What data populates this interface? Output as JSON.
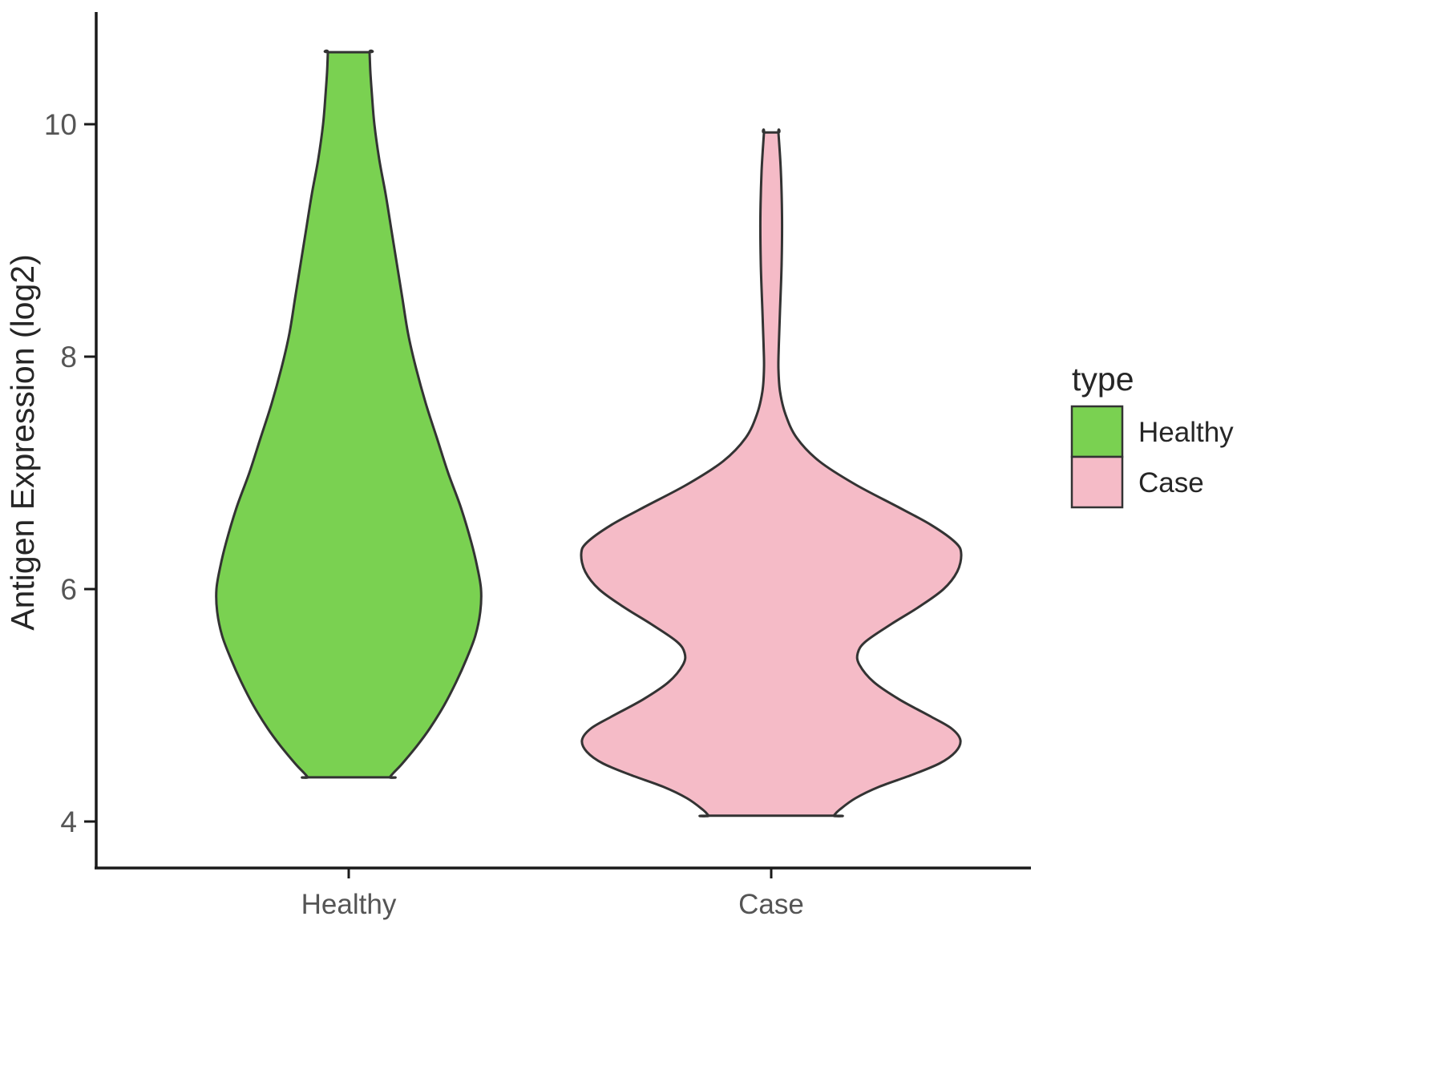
{
  "chart_data": {
    "type": "violin",
    "title": "",
    "xlabel": "",
    "ylabel": "Antigen Expression (log2)",
    "categories": [
      "Healthy",
      "Case"
    ],
    "yticks": [
      4,
      6,
      8,
      10
    ],
    "ylim": [
      3.55,
      10.95
    ],
    "grid": "off",
    "legend": {
      "title": "type",
      "position": "right",
      "entries": [
        {
          "label": "Healthy",
          "color": "#7AD151"
        },
        {
          "label": "Case",
          "color": "#F5BBC7"
        }
      ]
    },
    "colors": {
      "outline": "#333333",
      "axis": "#1a1a1a",
      "healthy_fill": "#7AD151",
      "case_fill": "#F5BBC7"
    },
    "series": [
      {
        "name": "Healthy",
        "color": "#7AD151",
        "summary": {
          "min": 4.38,
          "max": 10.62,
          "peak_density_at": 6.0
        },
        "profile": [
          [
            10.62,
            26
          ],
          [
            10.45,
            27
          ],
          [
            10.25,
            29
          ],
          [
            10.0,
            32
          ],
          [
            9.7,
            38
          ],
          [
            9.4,
            46
          ],
          [
            9.1,
            53
          ],
          [
            8.8,
            60
          ],
          [
            8.5,
            67
          ],
          [
            8.2,
            74
          ],
          [
            7.9,
            84
          ],
          [
            7.6,
            96
          ],
          [
            7.3,
            110
          ],
          [
            7.0,
            124
          ],
          [
            6.7,
            140
          ],
          [
            6.4,
            153
          ],
          [
            6.2,
            160
          ],
          [
            6.0,
            165
          ],
          [
            5.8,
            164
          ],
          [
            5.6,
            158
          ],
          [
            5.4,
            147
          ],
          [
            5.2,
            134
          ],
          [
            5.0,
            119
          ],
          [
            4.8,
            101
          ],
          [
            4.65,
            85
          ],
          [
            4.5,
            67
          ],
          [
            4.42,
            56
          ],
          [
            4.38,
            51
          ]
        ]
      },
      {
        "name": "Case",
        "color": "#F5BBC7",
        "summary": {
          "min": 4.05,
          "max": 9.93,
          "peak_density_at": 6.3,
          "second_peak_at": 4.7,
          "waist_at": 5.45
        },
        "profile": [
          [
            9.93,
            9
          ],
          [
            9.6,
            12
          ],
          [
            9.2,
            13.5
          ],
          [
            8.8,
            13
          ],
          [
            8.4,
            11
          ],
          [
            8.1,
            9.5
          ],
          [
            7.9,
            9
          ],
          [
            7.7,
            11
          ],
          [
            7.5,
            18
          ],
          [
            7.3,
            32
          ],
          [
            7.1,
            60
          ],
          [
            6.9,
            105
          ],
          [
            6.7,
            160
          ],
          [
            6.55,
            200
          ],
          [
            6.4,
            230
          ],
          [
            6.3,
            237
          ],
          [
            6.15,
            232
          ],
          [
            6.0,
            215
          ],
          [
            5.85,
            185
          ],
          [
            5.7,
            150
          ],
          [
            5.55,
            118
          ],
          [
            5.45,
            108
          ],
          [
            5.35,
            110
          ],
          [
            5.2,
            128
          ],
          [
            5.05,
            160
          ],
          [
            4.9,
            200
          ],
          [
            4.8,
            225
          ],
          [
            4.7,
            236
          ],
          [
            4.6,
            230
          ],
          [
            4.5,
            210
          ],
          [
            4.4,
            175
          ],
          [
            4.3,
            135
          ],
          [
            4.2,
            105
          ],
          [
            4.1,
            85
          ],
          [
            4.05,
            78
          ]
        ]
      }
    ]
  }
}
